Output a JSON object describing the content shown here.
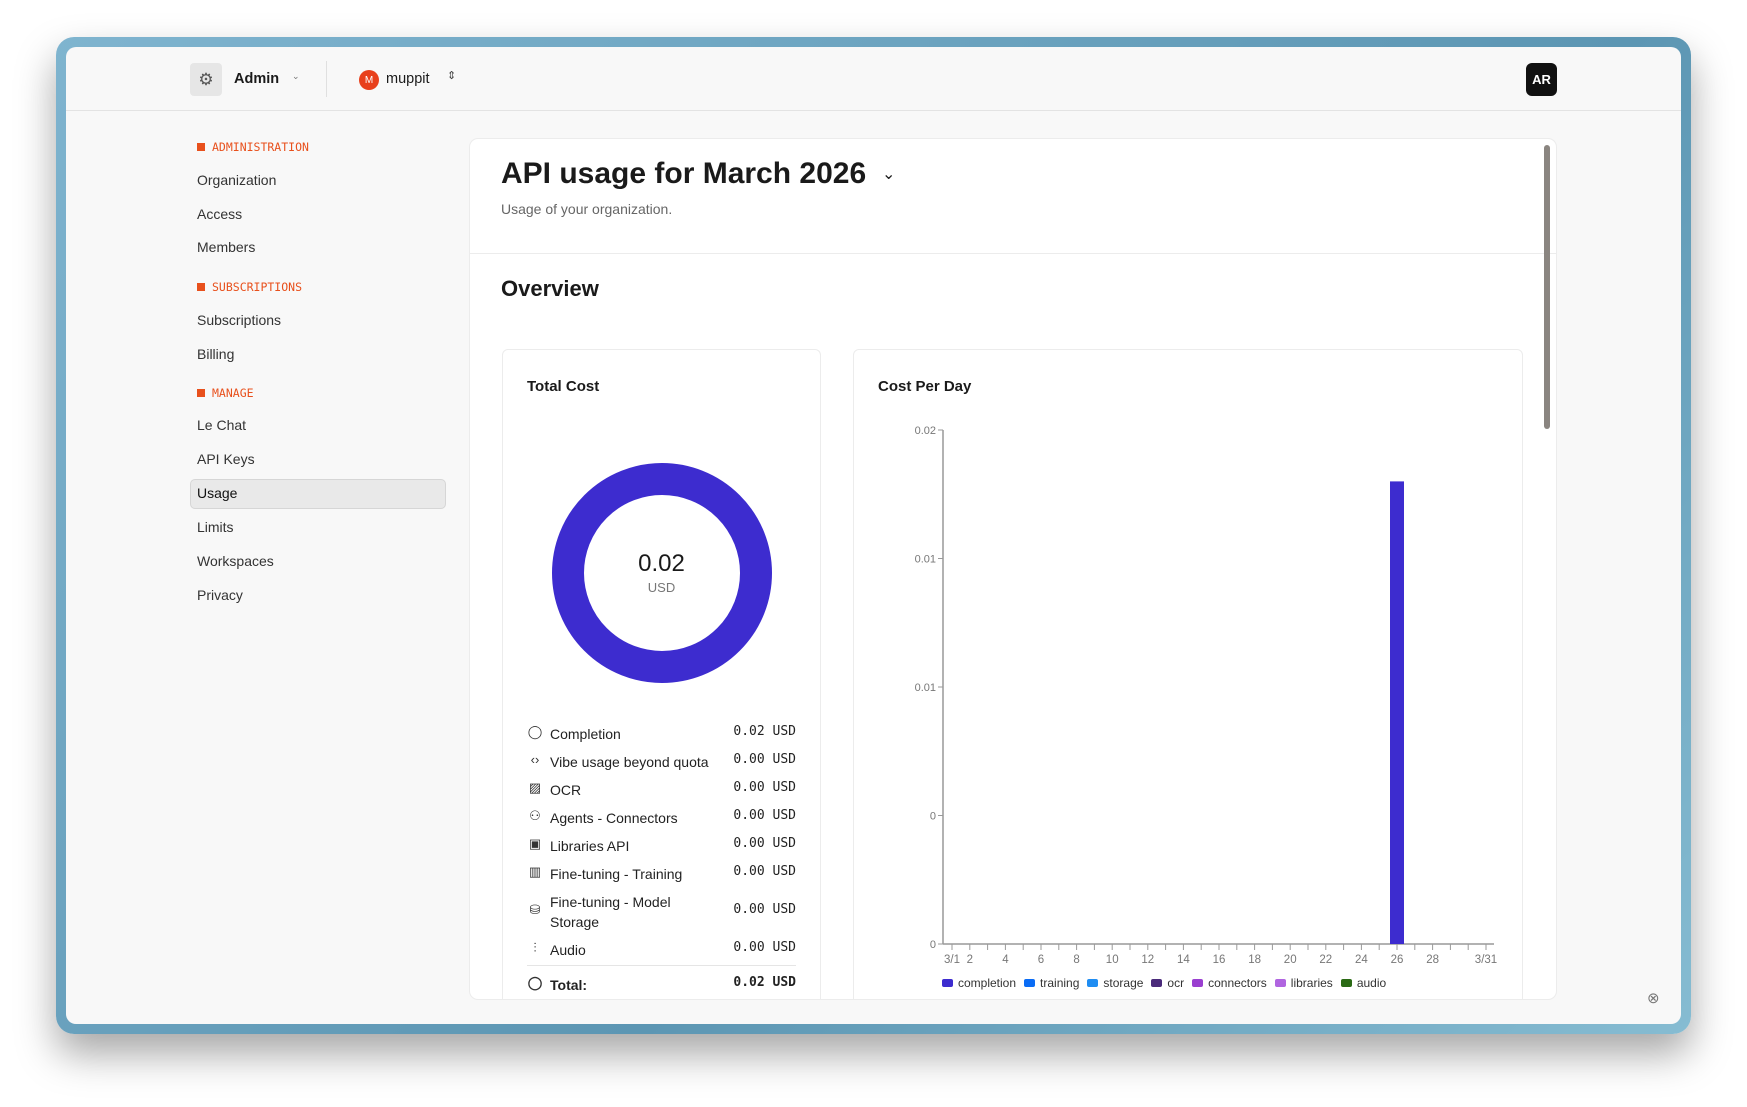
{
  "header": {
    "org_switch_label": "Admin",
    "workspace_initial": "M",
    "workspace_name": "muppit",
    "avatar_initials": "AR"
  },
  "sidebar": {
    "sections": [
      {
        "title": "ADMINISTRATION",
        "items": [
          "Organization",
          "Access",
          "Members"
        ]
      },
      {
        "title": "SUBSCRIPTIONS",
        "items": [
          "Subscriptions",
          "Billing"
        ]
      },
      {
        "title": "MANAGE",
        "items": [
          "Le Chat",
          "API Keys",
          "Usage",
          "Limits",
          "Workspaces",
          "Privacy"
        ]
      }
    ],
    "active": "Usage"
  },
  "page": {
    "title": "API usage for March 2026",
    "subtitle": "Usage of your organization.",
    "overview": "Overview"
  },
  "total_cost": {
    "title": "Total Cost",
    "value": "0.02",
    "unit": "USD",
    "rows": [
      {
        "icon": "chat-bubble-icon",
        "label": "Completion",
        "value": "0.02 USD"
      },
      {
        "icon": "code-icon",
        "label": "Vibe usage beyond quota",
        "value": "0.00 USD"
      },
      {
        "icon": "image-icon",
        "label": "OCR",
        "value": "0.00 USD"
      },
      {
        "icon": "users-icon",
        "label": "Agents - Connectors",
        "value": "0.00 USD"
      },
      {
        "icon": "library-icon",
        "label": "Libraries API",
        "value": "0.00 USD"
      },
      {
        "icon": "book-icon",
        "label": "Fine-tuning - Training",
        "value": "0.00 USD"
      },
      {
        "icon": "database-icon",
        "label": "Fine-tuning - Model Storage",
        "value": "0.00 USD"
      },
      {
        "icon": "audio-wave-icon",
        "label": "Audio",
        "value": "0.00 USD"
      }
    ],
    "total_label": "Total:",
    "total_value": "0.02 USD",
    "donut_color": "#3d2ccf"
  },
  "chart_data": {
    "type": "bar",
    "title": "Cost Per Day",
    "x": [
      1,
      2,
      3,
      4,
      5,
      6,
      7,
      8,
      9,
      10,
      11,
      12,
      13,
      14,
      15,
      16,
      17,
      18,
      19,
      20,
      21,
      22,
      23,
      24,
      25,
      26,
      27,
      28,
      29,
      30,
      31
    ],
    "x_tick_labels": {
      "1": "3/1",
      "2": "2",
      "4": "4",
      "6": "6",
      "8": "8",
      "10": "10",
      "12": "12",
      "14": "14",
      "16": "16",
      "18": "18",
      "20": "20",
      "22": "22",
      "24": "24",
      "26": "26",
      "28": "28",
      "31": "3/31"
    },
    "y_ticks": [
      0,
      0.005,
      0.01,
      0.015,
      0.02
    ],
    "y_tick_labels": [
      "0",
      "0",
      "0.01",
      "0.01",
      "0.02"
    ],
    "ylim": [
      0,
      0.02
    ],
    "series": [
      {
        "name": "completion",
        "color": "#3d2ccf",
        "values": {
          "26": 0.018
        }
      },
      {
        "name": "training",
        "color": "#0a6cf5",
        "values": {}
      },
      {
        "name": "storage",
        "color": "#1f8df2",
        "values": {}
      },
      {
        "name": "ocr",
        "color": "#4a2a7a",
        "values": {}
      },
      {
        "name": "connectors",
        "color": "#9a3fd0",
        "values": {}
      },
      {
        "name": "libraries",
        "color": "#b065e0",
        "values": {}
      },
      {
        "name": "audio",
        "color": "#2a6a14",
        "values": {}
      }
    ],
    "legend": "bottom"
  }
}
